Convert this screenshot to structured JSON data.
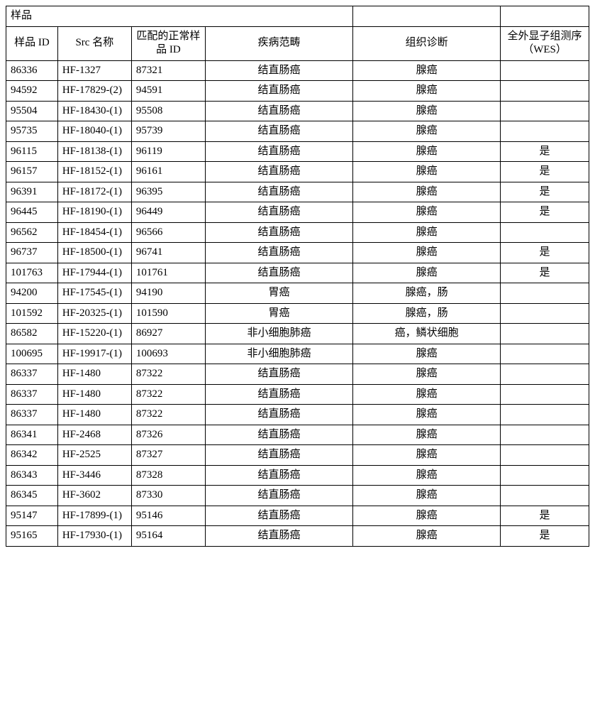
{
  "header": {
    "sample_group": "样品",
    "col1": "样品 ID",
    "col2": "Src 名称",
    "col3": "匹配的正常样品 ID",
    "col4": "疾病范畴",
    "col5": "组织诊断",
    "col6": "全外显子组测序（WES）"
  },
  "rows": [
    {
      "id": "86336",
      "src": "HF-1327",
      "match": "87321",
      "disease": "结直肠癌",
      "diag": "腺癌",
      "wes": ""
    },
    {
      "id": "94592",
      "src": "HF-17829-(2)",
      "match": "94591",
      "disease": "结直肠癌",
      "diag": "腺癌",
      "wes": ""
    },
    {
      "id": "95504",
      "src": "HF-18430-(1)",
      "match": "95508",
      "disease": "结直肠癌",
      "diag": "腺癌",
      "wes": ""
    },
    {
      "id": "95735",
      "src": "HF-18040-(1)",
      "match": "95739",
      "disease": "结直肠癌",
      "diag": "腺癌",
      "wes": ""
    },
    {
      "id": "96115",
      "src": "HF-18138-(1)",
      "match": "96119",
      "disease": "结直肠癌",
      "diag": "腺癌",
      "wes": "是"
    },
    {
      "id": "96157",
      "src": "HF-18152-(1)",
      "match": "96161",
      "disease": "结直肠癌",
      "diag": "腺癌",
      "wes": "是"
    },
    {
      "id": "96391",
      "src": "HF-18172-(1)",
      "match": "96395",
      "disease": "结直肠癌",
      "diag": "腺癌",
      "wes": "是"
    },
    {
      "id": "96445",
      "src": "HF-18190-(1)",
      "match": "96449",
      "disease": "结直肠癌",
      "diag": "腺癌",
      "wes": "是"
    },
    {
      "id": "96562",
      "src": "HF-18454-(1)",
      "match": "96566",
      "disease": "结直肠癌",
      "diag": "腺癌",
      "wes": ""
    },
    {
      "id": "96737",
      "src": "HF-18500-(1)",
      "match": "96741",
      "disease": "结直肠癌",
      "diag": "腺癌",
      "wes": "是"
    },
    {
      "id": "101763",
      "src": "HF-17944-(1)",
      "match": "101761",
      "disease": "结直肠癌",
      "diag": "腺癌",
      "wes": "是"
    },
    {
      "id": "94200",
      "src": "HF-17545-(1)",
      "match": "94190",
      "disease": "胃癌",
      "diag": "腺癌，肠",
      "wes": ""
    },
    {
      "id": "101592",
      "src": "HF-20325-(1)",
      "match": "101590",
      "disease": "胃癌",
      "diag": "腺癌，肠",
      "wes": ""
    },
    {
      "id": "86582",
      "src": "HF-15220-(1)",
      "match": "86927",
      "disease": "非小细胞肺癌",
      "diag": "癌，鳞状细胞",
      "wes": ""
    },
    {
      "id": "100695",
      "src": "HF-19917-(1)",
      "match": "100693",
      "disease": "非小细胞肺癌",
      "diag": "腺癌",
      "wes": ""
    },
    {
      "id": "86337",
      "src": "HF-1480",
      "match": "87322",
      "disease": "结直肠癌",
      "diag": "腺癌",
      "wes": ""
    },
    {
      "id": "86337",
      "src": "HF-1480",
      "match": "87322",
      "disease": "结直肠癌",
      "diag": "腺癌",
      "wes": ""
    },
    {
      "id": "86337",
      "src": "HF-1480",
      "match": "87322",
      "disease": "结直肠癌",
      "diag": "腺癌",
      "wes": ""
    },
    {
      "id": "86341",
      "src": "HF-2468",
      "match": "87326",
      "disease": "结直肠癌",
      "diag": "腺癌",
      "wes": ""
    },
    {
      "id": "86342",
      "src": "HF-2525",
      "match": "87327",
      "disease": "结直肠癌",
      "diag": "腺癌",
      "wes": ""
    },
    {
      "id": "86343",
      "src": "HF-3446",
      "match": "87328",
      "disease": "结直肠癌",
      "diag": "腺癌",
      "wes": ""
    },
    {
      "id": "86345",
      "src": "HF-3602",
      "match": "87330",
      "disease": "结直肠癌",
      "diag": "腺癌",
      "wes": ""
    },
    {
      "id": "95147",
      "src": "HF-17899-(1)",
      "match": "95146",
      "disease": "结直肠癌",
      "diag": "腺癌",
      "wes": "是"
    },
    {
      "id": "95165",
      "src": "HF-17930-(1)",
      "match": "95164",
      "disease": "结直肠癌",
      "diag": "腺癌",
      "wes": "是"
    }
  ]
}
